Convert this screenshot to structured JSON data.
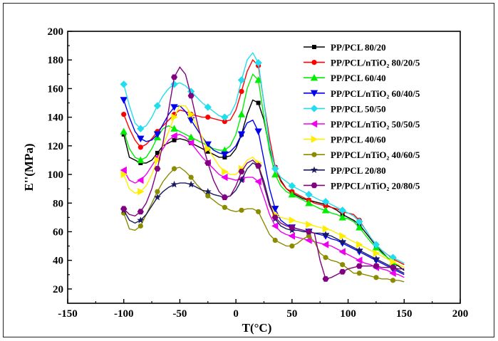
{
  "chart_data": {
    "type": "line",
    "xlabel": "T(°C)",
    "ylabel": "E''(MPa)",
    "xlim": [
      -150,
      200
    ],
    "ylim": [
      10,
      200
    ],
    "xticks": [
      -150,
      -100,
      -50,
      0,
      50,
      100,
      150,
      200
    ],
    "yticks": [
      20,
      40,
      60,
      80,
      100,
      120,
      140,
      160,
      180,
      200
    ],
    "legend_position": "top-right",
    "series": [
      {
        "name": "PP/PCL 80/20",
        "color": "#000000",
        "marker": "square",
        "x": [
          -100,
          -95,
          -90,
          -85,
          -80,
          -75,
          -70,
          -65,
          -60,
          -55,
          -50,
          -45,
          -40,
          -35,
          -30,
          -25,
          -20,
          -15,
          -10,
          -5,
          0,
          5,
          10,
          15,
          20,
          25,
          30,
          35,
          40,
          45,
          50,
          55,
          60,
          65,
          70,
          75,
          80,
          85,
          90,
          95,
          100,
          105,
          110,
          115,
          120,
          125,
          130,
          135,
          140,
          145,
          150
        ],
        "y": [
          128,
          112,
          110,
          108,
          108,
          110,
          115,
          120,
          122,
          124,
          125,
          124,
          122,
          120,
          118,
          116,
          114,
          112,
          112,
          113,
          118,
          128,
          142,
          152,
          150,
          138,
          118,
          105,
          96,
          90,
          87,
          85,
          83,
          82,
          81,
          80,
          79,
          77,
          75,
          72,
          70,
          68,
          65,
          60,
          55,
          50,
          46,
          42,
          38,
          36,
          33
        ]
      },
      {
        "name": "PP/PCL/nTiO₂ 80/20/5",
        "color": "#ff0000",
        "marker": "circle",
        "x": [
          -100,
          -95,
          -90,
          -85,
          -80,
          -75,
          -70,
          -65,
          -60,
          -55,
          -50,
          -45,
          -40,
          -35,
          -30,
          -25,
          -20,
          -15,
          -10,
          -5,
          0,
          5,
          10,
          15,
          20,
          25,
          30,
          35,
          40,
          45,
          50,
          55,
          60,
          65,
          70,
          75,
          80,
          85,
          90,
          95,
          100,
          105,
          110,
          115,
          120,
          125,
          130,
          135,
          140,
          145,
          150
        ],
        "y": [
          142,
          132,
          124,
          119,
          121,
          125,
          130,
          134,
          138,
          142,
          145,
          144,
          142,
          141,
          140,
          140,
          139,
          138,
          137,
          138,
          145,
          158,
          172,
          180,
          176,
          150,
          125,
          105,
          95,
          90,
          88,
          86,
          84,
          82,
          80,
          79,
          78,
          77,
          76,
          74,
          73,
          72,
          68,
          62,
          56,
          51,
          47,
          44,
          41,
          39,
          37
        ]
      },
      {
        "name": "PP/PCL 60/40",
        "color": "#00ee00",
        "marker": "triangle-up",
        "x": [
          -100,
          -95,
          -90,
          -85,
          -80,
          -75,
          -70,
          -65,
          -60,
          -55,
          -50,
          -45,
          -40,
          -35,
          -30,
          -25,
          -20,
          -15,
          -10,
          -5,
          0,
          5,
          10,
          15,
          20,
          25,
          30,
          35,
          40,
          45,
          50,
          55,
          60,
          65,
          70,
          75,
          80,
          85,
          90,
          95,
          100,
          105,
          110,
          115,
          120,
          125,
          130,
          135,
          140,
          145,
          150
        ],
        "y": [
          130,
          118,
          112,
          110,
          112,
          118,
          126,
          132,
          134,
          132,
          130,
          128,
          126,
          124,
          122,
          120,
          118,
          117,
          117,
          120,
          128,
          142,
          160,
          170,
          166,
          140,
          116,
          100,
          92,
          88,
          86,
          84,
          82,
          80,
          78,
          76,
          75,
          73,
          72,
          70,
          69,
          67,
          63,
          58,
          53,
          49,
          45,
          42,
          39,
          37,
          35
        ]
      },
      {
        "name": "PP/PCL/nTiO₂ 60/40/5",
        "color": "#0000ee",
        "marker": "triangle-down",
        "x": [
          -100,
          -95,
          -90,
          -85,
          -80,
          -75,
          -70,
          -65,
          -60,
          -55,
          -50,
          -45,
          -40,
          -35,
          -30,
          -25,
          -20,
          -15,
          -10,
          -5,
          0,
          5,
          10,
          15,
          20,
          25,
          30,
          35,
          40,
          45,
          50,
          55,
          60,
          65,
          70,
          75,
          80,
          85,
          90,
          95,
          100,
          105,
          110,
          115,
          120,
          125,
          130,
          135,
          140,
          145,
          150
        ],
        "y": [
          152,
          140,
          130,
          125,
          123,
          124,
          128,
          135,
          142,
          147,
          148,
          144,
          138,
          132,
          126,
          121,
          117,
          115,
          114,
          116,
          120,
          128,
          136,
          138,
          130,
          110,
          90,
          76,
          68,
          65,
          63,
          62,
          61,
          60,
          59,
          58,
          57,
          55,
          54,
          52,
          50,
          48,
          46,
          44,
          42,
          40,
          38,
          36,
          34,
          32,
          30
        ]
      },
      {
        "name": "PP/PCL 50/50",
        "color": "#22ddee",
        "marker": "diamond",
        "x": [
          -100,
          -95,
          -90,
          -85,
          -80,
          -75,
          -70,
          -65,
          -60,
          -55,
          -50,
          -45,
          -40,
          -35,
          -30,
          -25,
          -20,
          -15,
          -10,
          -5,
          0,
          5,
          10,
          15,
          20,
          25,
          30,
          35,
          40,
          45,
          50,
          55,
          60,
          65,
          70,
          75,
          80,
          85,
          90,
          95,
          100,
          105,
          110,
          115,
          120,
          125,
          130,
          135,
          140,
          145,
          150
        ],
        "y": [
          163,
          148,
          136,
          132,
          134,
          140,
          148,
          155,
          160,
          163,
          164,
          162,
          158,
          154,
          150,
          147,
          144,
          141,
          140,
          142,
          150,
          166,
          180,
          185,
          178,
          150,
          120,
          104,
          98,
          95,
          92,
          90,
          88,
          86,
          84,
          82,
          81,
          79,
          77,
          75,
          73,
          71,
          67,
          62,
          56,
          51,
          47,
          44,
          42,
          40,
          38
        ]
      },
      {
        "name": "PP/PCL/nTiO₂ 50/50/5",
        "color": "#ee00ee",
        "marker": "triangle-left",
        "x": [
          -100,
          -95,
          -90,
          -85,
          -80,
          -75,
          -70,
          -65,
          -60,
          -55,
          -50,
          -45,
          -40,
          -35,
          -30,
          -25,
          -20,
          -15,
          -10,
          -5,
          0,
          5,
          10,
          15,
          20,
          25,
          30,
          35,
          40,
          45,
          50,
          55,
          60,
          65,
          70,
          75,
          80,
          85,
          90,
          95,
          100,
          105,
          110,
          115,
          120,
          125,
          130,
          135,
          140,
          145,
          150
        ],
        "y": [
          103,
          96,
          94,
          96,
          100,
          106,
          112,
          118,
          124,
          127,
          128,
          126,
          122,
          117,
          112,
          108,
          104,
          100,
          98,
          97,
          96,
          97,
          98,
          98,
          95,
          84,
          72,
          64,
          60,
          58,
          57,
          56,
          55,
          54,
          53,
          52,
          51,
          50,
          48,
          46,
          44,
          42,
          40,
          38,
          37,
          35,
          34,
          33,
          31,
          30,
          28
        ]
      },
      {
        "name": "PP/PCL 40/60",
        "color": "#ffee00",
        "marker": "triangle-right",
        "x": [
          -100,
          -95,
          -90,
          -85,
          -80,
          -75,
          -70,
          -65,
          -60,
          -55,
          -50,
          -45,
          -40,
          -35,
          -30,
          -25,
          -20,
          -15,
          -10,
          -5,
          0,
          5,
          10,
          15,
          20,
          25,
          30,
          35,
          40,
          45,
          50,
          55,
          60,
          65,
          70,
          75,
          80,
          85,
          90,
          95,
          100,
          105,
          110,
          115,
          120,
          125,
          130,
          135,
          140,
          145,
          150
        ],
        "y": [
          100,
          90,
          87,
          88,
          92,
          100,
          110,
          120,
          130,
          140,
          148,
          148,
          142,
          134,
          126,
          118,
          112,
          106,
          102,
          100,
          100,
          104,
          110,
          112,
          108,
          94,
          80,
          72,
          70,
          69,
          68,
          67,
          66,
          65,
          64,
          63,
          62,
          61,
          59,
          57,
          55,
          53,
          51,
          49,
          47,
          45,
          43,
          41,
          39,
          37,
          35
        ]
      },
      {
        "name": "PP/PCL/nTiO₂ 40/60/5",
        "color": "#8b8b00",
        "marker": "circle",
        "x": [
          -100,
          -95,
          -90,
          -85,
          -80,
          -75,
          -70,
          -65,
          -60,
          -55,
          -50,
          -45,
          -40,
          -35,
          -30,
          -25,
          -20,
          -15,
          -10,
          -5,
          0,
          5,
          10,
          15,
          20,
          25,
          30,
          35,
          40,
          45,
          50,
          55,
          60,
          65,
          70,
          75,
          80,
          85,
          90,
          95,
          100,
          105,
          110,
          115,
          120,
          125,
          130,
          135,
          140,
          145,
          150
        ],
        "y": [
          73,
          62,
          61,
          64,
          72,
          80,
          88,
          95,
          100,
          104,
          105,
          102,
          98,
          93,
          89,
          85,
          82,
          79,
          77,
          75,
          74,
          75,
          76,
          76,
          74,
          66,
          58,
          54,
          52,
          50,
          50,
          52,
          55,
          57,
          53,
          45,
          42,
          40,
          39,
          37,
          34,
          31,
          31,
          30,
          29,
          28,
          27,
          27,
          26,
          26,
          25
        ]
      },
      {
        "name": "PP/PCL 20/80",
        "color": "#1a1a60",
        "marker": "star",
        "x": [
          -100,
          -95,
          -90,
          -85,
          -80,
          -75,
          -70,
          -65,
          -60,
          -55,
          -50,
          -45,
          -40,
          -35,
          -30,
          -25,
          -20,
          -15,
          -10,
          -5,
          0,
          5,
          10,
          15,
          20,
          25,
          30,
          35,
          40,
          45,
          50,
          55,
          60,
          65,
          70,
          75,
          80,
          85,
          90,
          95,
          100,
          105,
          110,
          115,
          120,
          125,
          130,
          135,
          140,
          145,
          150
        ],
        "y": [
          75,
          68,
          66,
          68,
          72,
          78,
          84,
          88,
          91,
          93,
          94,
          94,
          93,
          91,
          89,
          88,
          86,
          85,
          84,
          85,
          89,
          96,
          104,
          108,
          106,
          95,
          80,
          69,
          64,
          62,
          61,
          61,
          60,
          60,
          59,
          59,
          58,
          57,
          55,
          53,
          51,
          49,
          47,
          45,
          43,
          41,
          39,
          37,
          35,
          33,
          31
        ]
      },
      {
        "name": "PP/PCL/nTiO₂ 20/80/5",
        "color": "#800080",
        "marker": "hexagon",
        "x": [
          -100,
          -95,
          -90,
          -85,
          -80,
          -75,
          -70,
          -65,
          -60,
          -55,
          -50,
          -45,
          -40,
          -35,
          -30,
          -25,
          -20,
          -15,
          -10,
          -5,
          0,
          5,
          10,
          15,
          20,
          25,
          30,
          35,
          40,
          45,
          50,
          55,
          60,
          65,
          70,
          75,
          80,
          85,
          90,
          95,
          100,
          105,
          110,
          115,
          120,
          125,
          130,
          135,
          140,
          145,
          150
        ],
        "y": [
          76,
          72,
          71,
          74,
          80,
          90,
          104,
          122,
          145,
          168,
          175,
          170,
          155,
          138,
          122,
          108,
          96,
          88,
          84,
          85,
          92,
          102,
          108,
          110,
          106,
          92,
          78,
          70,
          66,
          64,
          63,
          62,
          61,
          60,
          59,
          40,
          27,
          28,
          30,
          32,
          34,
          35,
          36,
          36,
          36,
          36,
          35,
          35,
          35,
          34,
          34
        ]
      }
    ]
  }
}
